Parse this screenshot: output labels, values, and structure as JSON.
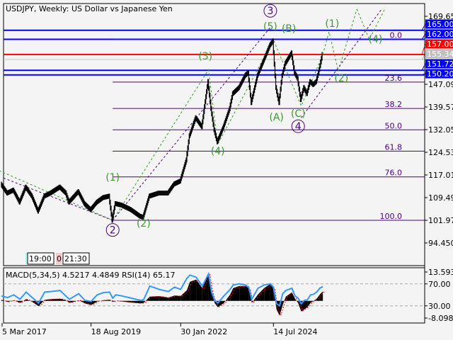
{
  "title": "USDJPY, Weekly:  US Dollar vs Japanese Yen",
  "indicator_label": "MACD(5,34,5) 4.5217 4.4849 RSI(14) 65.17",
  "session_tags": [
    "19:00",
    "0",
    "21:30"
  ],
  "colors": {
    "background": "#f4f4f4",
    "bars": "#000000",
    "level_blue": "#0000ff",
    "level_red": "#ff0000",
    "level_gray": "#c0c0c0",
    "fib": "#4b0082",
    "wave_green": "#3a9a2a",
    "wave_purple": "#4b0082",
    "rsi": "#3399ff",
    "macd_signal": "#ff0000"
  },
  "chart_data": {
    "type": "bar",
    "symbol": "USDJPY",
    "timeframe": "Weekly",
    "ylim": [
      94.45,
      169.65
    ],
    "price_ticks": [
      "169.650",
      "147.090",
      "139.570",
      "132.050",
      "124.530",
      "117.010",
      "109.490",
      "101.970",
      "94.450"
    ],
    "date_ticks": [
      {
        "label": "5 Mar 2017",
        "date": "2017-03"
      },
      {
        "label": "18 Aug 2019",
        "date": "2019-08"
      },
      {
        "label": "30 Jan 2022",
        "date": "2022-01"
      },
      {
        "label": "14 Jul 2024",
        "date": "2024-07"
      }
    ],
    "levels": [
      {
        "label": "165.000",
        "value": 165.0,
        "color": "#0000ff"
      },
      {
        "label": "162.000",
        "value": 162.0,
        "color": "#0000ff"
      },
      {
        "label": "157.003",
        "value": 157.003,
        "color": "#ff0000"
      },
      {
        "label": "155.340",
        "value": 155.34,
        "color": "#c0c0c0"
      },
      {
        "label": "151.720",
        "value": 151.72,
        "color": "#0000ff"
      },
      {
        "label": "150.200",
        "value": 150.2,
        "color": "#0000ff"
      }
    ],
    "fibonacci": {
      "high": 162.0,
      "low": 101.97,
      "start": "2020-03",
      "levels": [
        {
          "label": "0.0",
          "ratio": 0
        },
        {
          "label": "23.6",
          "ratio": 0.236
        },
        {
          "label": "38.2",
          "ratio": 0.382
        },
        {
          "label": "50.0",
          "ratio": 0.5
        },
        {
          "label": "61.8",
          "ratio": 0.618
        },
        {
          "label": "76.0",
          "ratio": 0.76
        },
        {
          "label": "100.0",
          "ratio": 1
        }
      ]
    },
    "waves": [
      {
        "label": "(1)",
        "date": "2020-03",
        "price": 115.1,
        "style": "green"
      },
      {
        "label": "(2)",
        "date": "2021-01",
        "price": 99.9,
        "style": "green"
      },
      {
        "label": "(3)",
        "date": "2022-09",
        "price": 155.3,
        "style": "green"
      },
      {
        "label": "(4)",
        "date": "2023-01",
        "price": 123.8,
        "style": "green"
      },
      {
        "label": "(5)",
        "date": "2024-06",
        "price": 165.2,
        "style": "green"
      },
      {
        "label": "(A)",
        "date": "2024-08",
        "price": 135.1,
        "style": "green"
      },
      {
        "label": "(B)",
        "date": "2024-12",
        "price": 164.5,
        "style": "green"
      },
      {
        "label": "(C)",
        "date": "2025-03",
        "price": 136.3,
        "style": "green"
      },
      {
        "label": "(1)",
        "date": "2026-02",
        "price": 166.1,
        "style": "green"
      },
      {
        "label": "(2)",
        "date": "2026-05",
        "price": 148.0,
        "style": "green"
      },
      {
        "label": "(4)",
        "date": "2027-04",
        "price": 161.0,
        "style": "green"
      },
      {
        "label": "2",
        "date": "2020-03",
        "price": 97.6,
        "style": "circle"
      },
      {
        "label": "3",
        "date": "2024-06",
        "price": 170.3,
        "style": "circle"
      },
      {
        "label": "4",
        "date": "2025-03",
        "price": 132.0,
        "style": "circle"
      }
    ],
    "forecast_path": [
      {
        "date": "2025-11",
        "price": 157.0
      },
      {
        "date": "2026-01",
        "price": 164.5
      },
      {
        "date": "2026-04",
        "price": 151.5
      },
      {
        "date": "2026-10",
        "price": 172.0
      }
    ],
    "forecast_path_2": [
      {
        "date": "2026-10",
        "price": 172.0
      },
      {
        "date": "2027-02",
        "price": 162.0
      },
      {
        "date": "2027-07",
        "price": 172.0
      }
    ],
    "wave_path": [
      {
        "date": "2017-01",
        "price": 119.0
      },
      {
        "date": "2020-03",
        "price": 101.97
      },
      {
        "date": "2022-10",
        "price": 151.9
      },
      {
        "date": "2023-01",
        "price": 127.2
      },
      {
        "date": "2024-07",
        "price": 161.9
      },
      {
        "date": "2025-04",
        "price": 139.9
      },
      {
        "date": "2025-11",
        "price": 157.0
      }
    ],
    "series": [
      {
        "name": "USDJPY",
        "dates": [
          "2017-03",
          "2017-05",
          "2017-07",
          "2017-09",
          "2017-11",
          "2018-01",
          "2018-03",
          "2018-05",
          "2018-07",
          "2018-10",
          "2018-12",
          "2019-01",
          "2019-04",
          "2019-06",
          "2019-08",
          "2019-10",
          "2019-12",
          "2020-02",
          "2020-03",
          "2020-04",
          "2020-06",
          "2020-09",
          "2020-12",
          "2021-01",
          "2021-03",
          "2021-06",
          "2021-09",
          "2021-11",
          "2022-01",
          "2022-03",
          "2022-04",
          "2022-06",
          "2022-08",
          "2022-10",
          "2022-11",
          "2022-12",
          "2023-01",
          "2023-03",
          "2023-05",
          "2023-06",
          "2023-08",
          "2023-10",
          "2023-11",
          "2023-12",
          "2024-02",
          "2024-04",
          "2024-06",
          "2024-07",
          "2024-08",
          "2024-09",
          "2024-10",
          "2024-11",
          "2025-01",
          "2025-02",
          "2025-03",
          "2025-04",
          "2025-05",
          "2025-06",
          "2025-07",
          "2025-08",
          "2025-09",
          "2025-10",
          "2025-11"
        ],
        "close": [
          114,
          111,
          112,
          108,
          113,
          110,
          105,
          110,
          111,
          113,
          111,
          108,
          111.5,
          107.5,
          105.5,
          108,
          109.5,
          110,
          102,
          107.5,
          107,
          105.5,
          103.3,
          103,
          110,
          111,
          111,
          114,
          115,
          122,
          130,
          136,
          133,
          148,
          139,
          132,
          128,
          133,
          139,
          144,
          146,
          150,
          151,
          141,
          150,
          155,
          160,
          161.5,
          146,
          141,
          150,
          154,
          157.5,
          151,
          149,
          142,
          146,
          144,
          148,
          147,
          148,
          152,
          157
        ]
      }
    ],
    "indicators": {
      "macd": {
        "params": "5,34,5",
        "value": 4.5217,
        "signal": 4.4849,
        "ylim": [
          -8.0988,
          13.5933
        ],
        "values": [
          0.5,
          -0.5,
          0.3,
          -1,
          0.8,
          -0.5,
          -2.5,
          0.5,
          0.8,
          1,
          0.2,
          -1,
          0.3,
          -1.2,
          -2,
          -0.3,
          0.3,
          0.5,
          -0.5,
          0,
          -0.3,
          -0.8,
          -1.2,
          -1,
          2,
          2.2,
          1.5,
          2.5,
          2.3,
          5,
          9,
          10,
          6,
          13,
          4,
          -1,
          -3,
          -1,
          3,
          6,
          7,
          7,
          6,
          -1,
          3,
          6,
          8,
          6,
          -4,
          -7,
          -2,
          2,
          4,
          1,
          -1,
          -5,
          -4,
          -3,
          -1,
          0,
          1,
          3,
          4.52
        ]
      },
      "rsi": {
        "period": 14,
        "value": 65.17,
        "levels": [
          70,
          30
        ],
        "values": [
          48,
          45,
          50,
          42,
          55,
          45,
          35,
          55,
          56,
          58,
          47,
          42,
          52,
          40,
          38,
          50,
          54,
          55,
          44,
          50,
          48,
          44,
          40,
          41,
          66,
          60,
          56,
          64,
          60,
          80,
          86,
          82,
          66,
          88,
          55,
          40,
          35,
          48,
          60,
          68,
          70,
          68,
          64,
          42,
          62,
          68,
          70,
          64,
          34,
          30,
          52,
          58,
          62,
          48,
          44,
          34,
          40,
          41,
          50,
          51,
          55,
          62,
          65.17
        ]
      }
    },
    "indicator_ticks": [
      "13.5933",
      "70.00",
      "30.00",
      "-8.0988"
    ]
  }
}
